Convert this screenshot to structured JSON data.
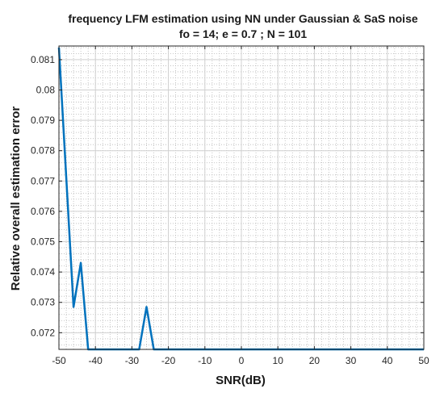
{
  "chart_data": {
    "type": "line",
    "title": "frequency LFM estimation using NN under Gaussian & SaS noise",
    "subtitle": "fo = 14; e = 0.7 ; N = 101",
    "xlabel": "SNR(dB)",
    "ylabel": "Relative overall estimation error",
    "xlim": [
      -50,
      50
    ],
    "ylim": [
      0.07145,
      0.08145
    ],
    "xticks": [
      -50,
      -40,
      -30,
      -20,
      -10,
      0,
      10,
      20,
      30,
      40,
      50
    ],
    "yticks": [
      0.072,
      0.073,
      0.074,
      0.075,
      0.076,
      0.077,
      0.078,
      0.079,
      0.08,
      0.081
    ],
    "grid": true,
    "minor_grid": true,
    "series": [
      {
        "color": "#0072bd",
        "x": [
          -50,
          -46,
          -44,
          -42,
          -28,
          -26,
          -24,
          50
        ],
        "y": [
          0.0814,
          0.07285,
          0.0743,
          0.07145,
          0.07145,
          0.07285,
          0.07145,
          0.07145
        ]
      }
    ]
  }
}
